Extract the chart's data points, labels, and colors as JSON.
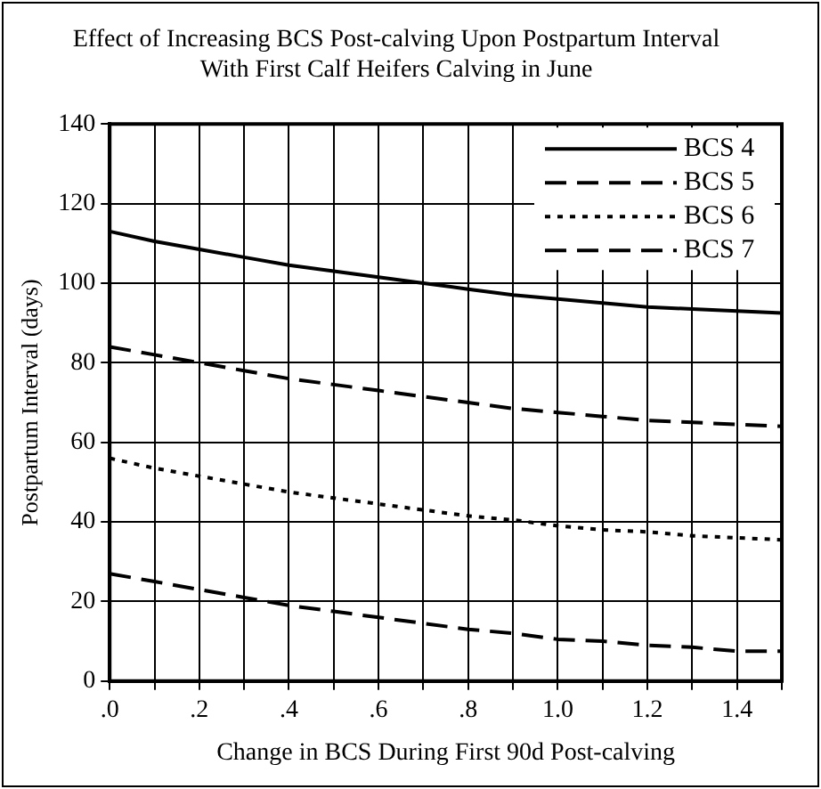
{
  "chart_data": {
    "type": "line",
    "title": "Effect of Increasing BCS Post-calving Upon Postpartum Interval\nWith First Calf Heifers Calving in June",
    "xlabel": "Change in BCS During First 90d Post-calving",
    "ylabel": "Postpartum Interval (days)",
    "x": [
      0,
      0.1,
      0.2,
      0.3,
      0.4,
      0.5,
      0.6,
      0.7,
      0.8,
      0.9,
      1.0,
      1.1,
      1.2,
      1.3,
      1.4,
      1.5
    ],
    "series": [
      {
        "name": "BCS 4",
        "color": "#000000",
        "line_style": "solid",
        "values": [
          113,
          110.5,
          108.5,
          106.5,
          104.5,
          103,
          101.5,
          100,
          98.5,
          97,
          96,
          95,
          94,
          93.5,
          93,
          92.5
        ]
      },
      {
        "name": "BCS 5",
        "color": "#000000",
        "line_style": "dashed",
        "values": [
          84,
          82,
          80,
          78,
          76,
          74.5,
          73,
          71.5,
          70,
          68.5,
          67.5,
          66.5,
          65.5,
          65,
          64.5,
          64
        ]
      },
      {
        "name": "BCS 6",
        "color": "#000000",
        "line_style": "dotted",
        "values": [
          56,
          53.5,
          51.5,
          49.5,
          47.5,
          46,
          44.5,
          43,
          41.5,
          40.5,
          39,
          38,
          37.5,
          36.5,
          36,
          35.5
        ]
      },
      {
        "name": "BCS 7",
        "color": "#000000",
        "line_style": "dashed",
        "values": [
          27,
          25,
          23,
          21,
          19,
          17.5,
          16,
          14.5,
          13,
          12,
          10.5,
          10,
          9,
          8.5,
          7.5,
          7.5
        ]
      }
    ],
    "xlim": [
      0,
      1.5
    ],
    "xticks": [
      {
        "value": 0,
        "label": ".0"
      },
      {
        "value": 0.1,
        "label": null
      },
      {
        "value": 0.2,
        "label": ".2"
      },
      {
        "value": 0.3,
        "label": null
      },
      {
        "value": 0.4,
        "label": ".4"
      },
      {
        "value": 0.5,
        "label": null
      },
      {
        "value": 0.6,
        "label": ".6"
      },
      {
        "value": 0.7,
        "label": null
      },
      {
        "value": 0.8,
        "label": ".8"
      },
      {
        "value": 0.9,
        "label": null
      },
      {
        "value": 1.0,
        "label": "1.0"
      },
      {
        "value": 1.1,
        "label": null
      },
      {
        "value": 1.2,
        "label": "1.2"
      },
      {
        "value": 1.3,
        "label": null
      },
      {
        "value": 1.4,
        "label": "1.4"
      },
      {
        "value": 1.5,
        "label": null
      }
    ],
    "ylim": [
      0,
      140
    ],
    "yticks": [
      0,
      20,
      40,
      60,
      80,
      100,
      120,
      140
    ],
    "grid": true,
    "legend": "top right",
    "marker": "none"
  }
}
